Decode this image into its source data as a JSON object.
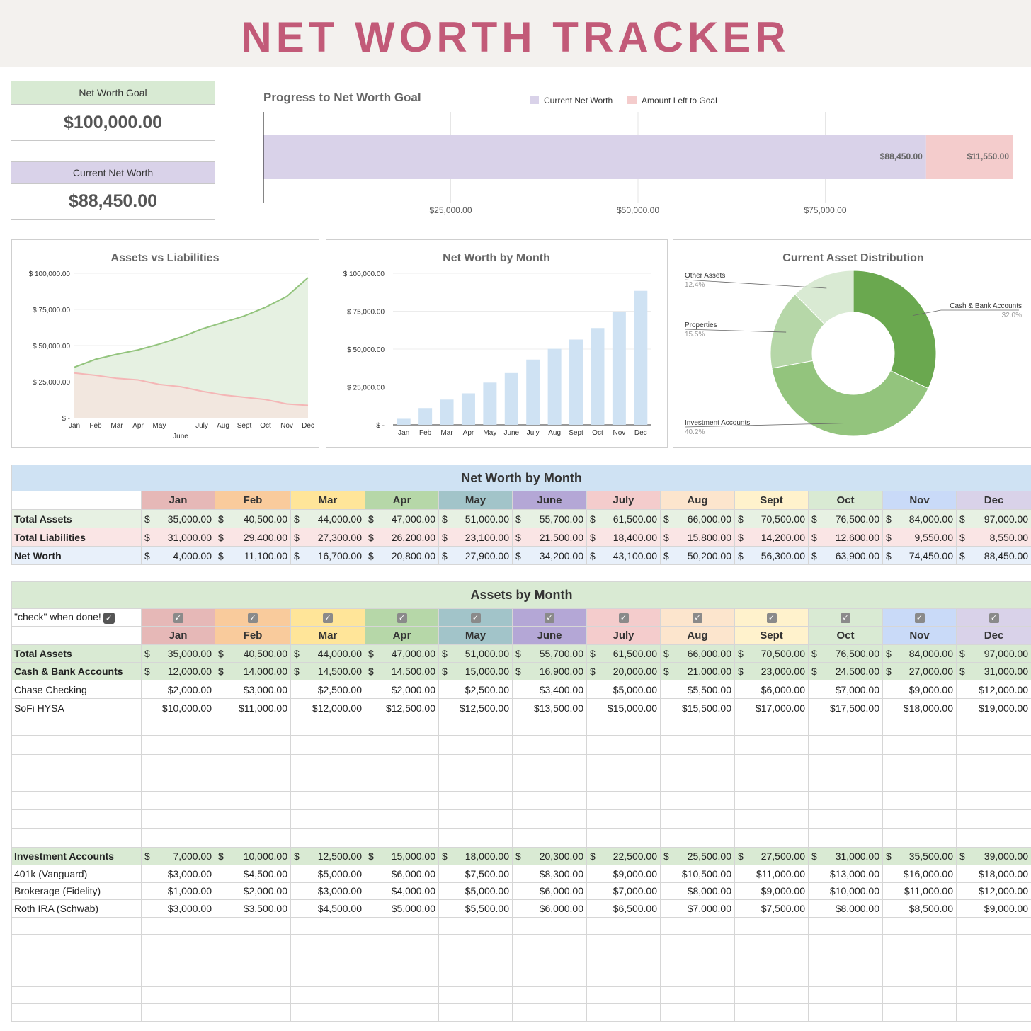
{
  "title": "NET WORTH TRACKER",
  "kpi": {
    "goal_label": "Net Worth Goal",
    "goal_value": "$100,000.00",
    "current_label": "Current Net Worth",
    "current_value": "$88,450.00"
  },
  "colors": {
    "title": "#c25a78",
    "goal_bg": "#d8ead3",
    "current_bg": "#d9d2e9",
    "progress_current": "#d9d2e9",
    "progress_left": "#f4cccc",
    "assets_line": "#93c47d",
    "liabilities_line": "#f4b6b6",
    "nw_bars": "#cfe2f3",
    "months": [
      "#e6b8b7",
      "#f9cb9c",
      "#ffe599",
      "#b6d7a8",
      "#a2c4c9",
      "#b4a7d6",
      "#f4cccc",
      "#fce5cd",
      "#fff2cc",
      "#d9ead3",
      "#c9daf8",
      "#d9d2e9"
    ]
  },
  "chart_data": [
    {
      "type": "bar",
      "orientation": "horizontal-stacked",
      "title": "Progress to Net Worth Goal",
      "series": [
        {
          "name": "Current Net Worth",
          "values": [
            88450
          ],
          "label": "$88,450.00"
        },
        {
          "name": "Amount Left to Goal",
          "values": [
            11550
          ],
          "label": "$11,550.00"
        }
      ],
      "xlim": [
        0,
        100000
      ],
      "xticks": [
        25000,
        50000,
        75000
      ],
      "xtick_labels": [
        "$25,000.00",
        "$50,000.00",
        "$75,000.00"
      ],
      "legend": "top"
    },
    {
      "type": "area",
      "title": "Assets vs Liabilities",
      "categories": [
        "Jan",
        "Feb",
        "Mar",
        "Apr",
        "May",
        "June",
        "July",
        "Aug",
        "Sept",
        "Oct",
        "Nov",
        "Dec"
      ],
      "series": [
        {
          "name": "Total Assets",
          "values": [
            35000,
            40500,
            44000,
            47000,
            51000,
            55700,
            61500,
            66000,
            70500,
            76500,
            84000,
            97000
          ]
        },
        {
          "name": "Total Liabilities",
          "values": [
            31000,
            29400,
            27300,
            26200,
            23100,
            21500,
            18400,
            15800,
            14200,
            12600,
            9550,
            8550
          ]
        }
      ],
      "ylim": [
        0,
        100000
      ],
      "yticks": [
        0,
        25000,
        50000,
        75000,
        100000
      ],
      "ytick_labels": [
        "$ -",
        "$ 25,000.00",
        "$ 50,000.00",
        "$ 75,000.00",
        "$ 100,000.00"
      ]
    },
    {
      "type": "bar",
      "title": "Net Worth by Month",
      "categories": [
        "Jan",
        "Feb",
        "Mar",
        "Apr",
        "May",
        "June",
        "July",
        "Aug",
        "Sept",
        "Oct",
        "Nov",
        "Dec"
      ],
      "values": [
        4000,
        11100,
        16700,
        20800,
        27900,
        34200,
        43100,
        50200,
        56300,
        63900,
        74450,
        88450
      ],
      "ylim": [
        0,
        100000
      ],
      "yticks": [
        0,
        25000,
        50000,
        75000,
        100000
      ],
      "ytick_labels": [
        "$ -",
        "$ 25,000.00",
        "$ 50,000.00",
        "$ 75,000.00",
        "$ 100,000.00"
      ]
    },
    {
      "type": "pie",
      "style": "donut",
      "title": "Current Asset Distribution",
      "slices": [
        {
          "name": "Cash & Bank Accounts",
          "pct": "32.0%",
          "value": 32.0,
          "color": "#6aa84f"
        },
        {
          "name": "Investment Accounts",
          "pct": "40.2%",
          "value": 40.2,
          "color": "#93c47d"
        },
        {
          "name": "Properties",
          "pct": "15.5%",
          "value": 15.5,
          "color": "#b6d7a8"
        },
        {
          "name": "Other Assets",
          "pct": "12.4%",
          "value": 12.4,
          "color": "#d9ead3"
        }
      ]
    }
  ],
  "months": [
    "Jan",
    "Feb",
    "Mar",
    "Apr",
    "May",
    "June",
    "July",
    "Aug",
    "Sept",
    "Oct",
    "Nov",
    "Dec"
  ],
  "nw_table": {
    "title": "Net Worth by Month",
    "rows": [
      {
        "label": "Total Assets",
        "values": [
          "35,000.00",
          "40,500.00",
          "44,000.00",
          "47,000.00",
          "51,000.00",
          "55,700.00",
          "61,500.00",
          "66,000.00",
          "70,500.00",
          "76,500.00",
          "84,000.00",
          "97,000.00"
        ],
        "bg": "#e7f1e3"
      },
      {
        "label": "Total Liabilities",
        "values": [
          "31,000.00",
          "29,400.00",
          "27,300.00",
          "26,200.00",
          "23,100.00",
          "21,500.00",
          "18,400.00",
          "15,800.00",
          "14,200.00",
          "12,600.00",
          "9,550.00",
          "8,550.00"
        ],
        "bg": "#fae5e5"
      },
      {
        "label": "Net Worth",
        "values": [
          "4,000.00",
          "11,100.00",
          "16,700.00",
          "20,800.00",
          "27,900.00",
          "34,200.00",
          "43,100.00",
          "50,200.00",
          "56,300.00",
          "63,900.00",
          "74,450.00",
          "88,450.00"
        ],
        "bg": "#e8f0fa"
      }
    ]
  },
  "assets_table": {
    "title": "Assets by Month",
    "check_label": "\"check\" when done!",
    "sections": [
      {
        "kind": "total",
        "label": "Total Assets",
        "values": [
          "35,000.00",
          "40,500.00",
          "44,000.00",
          "47,000.00",
          "51,000.00",
          "55,700.00",
          "61,500.00",
          "66,000.00",
          "70,500.00",
          "76,500.00",
          "84,000.00",
          "97,000.00"
        ]
      },
      {
        "kind": "group",
        "label": "Cash & Bank Accounts",
        "values": [
          "12,000.00",
          "14,000.00",
          "14,500.00",
          "14,500.00",
          "15,000.00",
          "16,900.00",
          "20,000.00",
          "21,000.00",
          "23,000.00",
          "24,500.00",
          "27,000.00",
          "31,000.00"
        ],
        "items": [
          {
            "label": "Chase Checking",
            "values": [
              "$2,000.00",
              "$3,000.00",
              "$2,500.00",
              "$2,000.00",
              "$2,500.00",
              "$3,400.00",
              "$5,000.00",
              "$5,500.00",
              "$6,000.00",
              "$7,000.00",
              "$9,000.00",
              "$12,000.00"
            ]
          },
          {
            "label": "SoFi HYSA",
            "values": [
              "$10,000.00",
              "$11,000.00",
              "$12,000.00",
              "$12,500.00",
              "$12,500.00",
              "$13,500.00",
              "$15,000.00",
              "$15,500.00",
              "$17,000.00",
              "$17,500.00",
              "$18,000.00",
              "$19,000.00"
            ]
          }
        ],
        "empty_rows": 7
      },
      {
        "kind": "group",
        "label": "Investment Accounts",
        "values": [
          "7,000.00",
          "10,000.00",
          "12,500.00",
          "15,000.00",
          "18,000.00",
          "20,300.00",
          "22,500.00",
          "25,500.00",
          "27,500.00",
          "31,000.00",
          "35,500.00",
          "39,000.00"
        ],
        "items": [
          {
            "label": "401k (Vanguard)",
            "values": [
              "$3,000.00",
              "$4,500.00",
              "$5,000.00",
              "$6,000.00",
              "$7,500.00",
              "$8,300.00",
              "$9,000.00",
              "$10,500.00",
              "$11,000.00",
              "$13,000.00",
              "$16,000.00",
              "$18,000.00"
            ]
          },
          {
            "label": "Brokerage (Fidelity)",
            "values": [
              "$1,000.00",
              "$2,000.00",
              "$3,000.00",
              "$4,000.00",
              "$5,000.00",
              "$6,000.00",
              "$7,000.00",
              "$8,000.00",
              "$9,000.00",
              "$10,000.00",
              "$11,000.00",
              "$12,000.00"
            ]
          },
          {
            "label": "Roth IRA (Schwab)",
            "values": [
              "$3,000.00",
              "$3,500.00",
              "$4,500.00",
              "$5,000.00",
              "$5,500.00",
              "$6,000.00",
              "$6,500.00",
              "$7,000.00",
              "$7,500.00",
              "$8,000.00",
              "$8,500.00",
              "$9,000.00"
            ]
          }
        ],
        "empty_rows": 6
      }
    ]
  },
  "currency_symbol": "$"
}
